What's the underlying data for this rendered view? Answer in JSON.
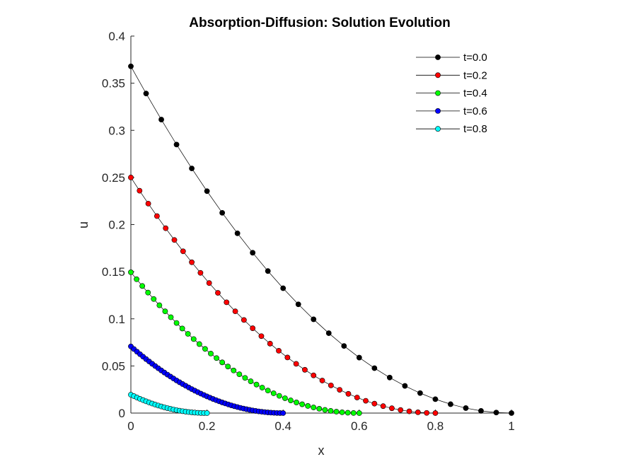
{
  "chart_data": {
    "type": "line",
    "title": "Absorption-Diffusion: Solution Evolution",
    "xlabel": "x",
    "ylabel": "u",
    "xlim": [
      0,
      1
    ],
    "ylim": [
      0,
      0.4
    ],
    "grid": false,
    "legend_position": "top-right",
    "x_ticks": [
      0,
      0.2,
      0.4,
      0.6,
      0.8,
      1
    ],
    "x_tick_labels": [
      "0",
      "0.2",
      "0.4",
      "0.6",
      "0.8",
      "1"
    ],
    "y_ticks": [
      0,
      0.05,
      0.1,
      0.15,
      0.2,
      0.25,
      0.3,
      0.35,
      0.4
    ],
    "y_tick_labels": [
      "0",
      "0.05",
      "0.1",
      "0.15",
      "0.2",
      "0.25",
      "0.3",
      "0.35",
      "0.4"
    ],
    "series": [
      {
        "name": "t=0.0",
        "color": "#000000",
        "u0": 0.3679,
        "support": 1.0,
        "points": 26
      },
      {
        "name": "t=0.2",
        "color": "#ff0000",
        "u0": 0.25,
        "support": 0.8,
        "points": 36
      },
      {
        "name": "t=0.4",
        "color": "#00ff00",
        "u0": 0.1494,
        "support": 0.6,
        "points": 41
      },
      {
        "name": "t=0.6",
        "color": "#0000ff",
        "u0": 0.0707,
        "support": 0.4,
        "points": 51
      },
      {
        "name": "t=0.8",
        "color": "#00ffff",
        "u0": 0.0195,
        "support": 0.2,
        "points": 26
      }
    ]
  }
}
